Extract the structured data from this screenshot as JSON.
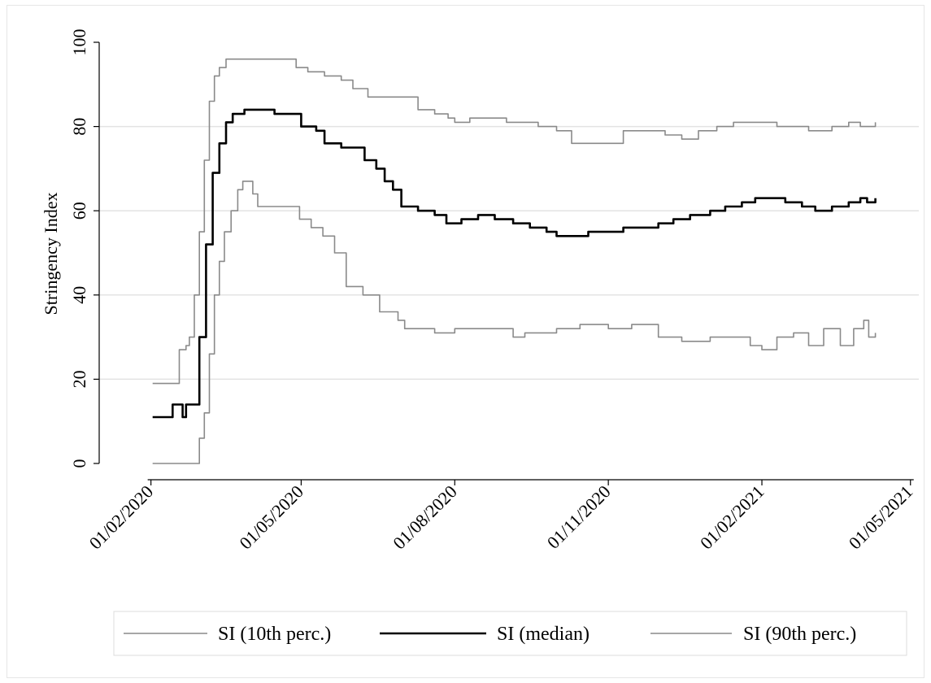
{
  "chart_data": {
    "type": "line",
    "title": "",
    "xlabel": "",
    "ylabel": "Stringency Index",
    "ylim": [
      0,
      100
    ],
    "yticks": [
      0,
      20,
      40,
      60,
      80,
      100
    ],
    "xlim": [
      "2020-01-01",
      "2021-05-06"
    ],
    "xticks": [
      {
        "date": "2020-02-01",
        "label": "01/02/2020"
      },
      {
        "date": "2020-05-01",
        "label": "01/05/2020"
      },
      {
        "date": "2020-08-01",
        "label": "01/08/2020"
      },
      {
        "date": "2020-11-01",
        "label": "01/11/2020"
      },
      {
        "date": "2021-02-01",
        "label": "01/02/2021"
      },
      {
        "date": "2021-05-01",
        "label": "01/05/2021"
      }
    ],
    "grid": true,
    "legend_position": "bottom",
    "series": [
      {
        "name": "SI (10th perc.)",
        "color": "#8a8a8a",
        "points": [
          [
            "2020-02-02",
            0
          ],
          [
            "2020-02-26",
            0
          ],
          [
            "2020-03-01",
            6
          ],
          [
            "2020-03-04",
            12
          ],
          [
            "2020-03-07",
            26
          ],
          [
            "2020-03-10",
            40
          ],
          [
            "2020-03-13",
            48
          ],
          [
            "2020-03-16",
            55
          ],
          [
            "2020-03-20",
            60
          ],
          [
            "2020-03-24",
            65
          ],
          [
            "2020-03-27",
            67
          ],
          [
            "2020-04-02",
            64
          ],
          [
            "2020-04-05",
            61
          ],
          [
            "2020-04-25",
            61
          ],
          [
            "2020-04-30",
            58
          ],
          [
            "2020-05-07",
            56
          ],
          [
            "2020-05-14",
            54
          ],
          [
            "2020-05-21",
            50
          ],
          [
            "2020-05-28",
            42
          ],
          [
            "2020-06-07",
            40
          ],
          [
            "2020-06-17",
            36
          ],
          [
            "2020-06-28",
            34
          ],
          [
            "2020-07-02",
            32
          ],
          [
            "2020-07-20",
            31
          ],
          [
            "2020-08-01",
            32
          ],
          [
            "2020-09-01",
            32
          ],
          [
            "2020-09-05",
            30
          ],
          [
            "2020-09-12",
            31
          ],
          [
            "2020-09-20",
            31
          ],
          [
            "2020-10-01",
            32
          ],
          [
            "2020-10-15",
            33
          ],
          [
            "2020-10-25",
            33
          ],
          [
            "2020-11-01",
            32
          ],
          [
            "2020-11-15",
            33
          ],
          [
            "2020-12-01",
            30
          ],
          [
            "2020-12-15",
            29
          ],
          [
            "2021-01-01",
            30
          ],
          [
            "2021-01-15",
            30
          ],
          [
            "2021-01-25",
            28
          ],
          [
            "2021-02-01",
            27
          ],
          [
            "2021-02-10",
            30
          ],
          [
            "2021-02-20",
            31
          ],
          [
            "2021-03-01",
            28
          ],
          [
            "2021-03-10",
            32
          ],
          [
            "2021-03-20",
            28
          ],
          [
            "2021-03-28",
            32
          ],
          [
            "2021-04-03",
            34
          ],
          [
            "2021-04-06",
            30
          ],
          [
            "2021-04-10",
            31
          ]
        ]
      },
      {
        "name": "SI (median)",
        "color": "#000000",
        "points": [
          [
            "2020-02-02",
            11
          ],
          [
            "2020-02-12",
            11
          ],
          [
            "2020-02-14",
            14
          ],
          [
            "2020-02-19",
            14
          ],
          [
            "2020-02-20",
            11
          ],
          [
            "2020-02-22",
            14
          ],
          [
            "2020-02-26",
            14
          ],
          [
            "2020-03-01",
            30
          ],
          [
            "2020-03-05",
            52
          ],
          [
            "2020-03-09",
            69
          ],
          [
            "2020-03-13",
            76
          ],
          [
            "2020-03-17",
            81
          ],
          [
            "2020-03-21",
            83
          ],
          [
            "2020-03-28",
            84
          ],
          [
            "2020-04-05",
            84
          ],
          [
            "2020-04-15",
            83
          ],
          [
            "2020-04-25",
            83
          ],
          [
            "2020-05-01",
            80
          ],
          [
            "2020-05-10",
            79
          ],
          [
            "2020-05-15",
            76
          ],
          [
            "2020-05-25",
            75
          ],
          [
            "2020-06-01",
            75
          ],
          [
            "2020-06-08",
            72
          ],
          [
            "2020-06-15",
            70
          ],
          [
            "2020-06-20",
            67
          ],
          [
            "2020-06-25",
            65
          ],
          [
            "2020-06-30",
            61
          ],
          [
            "2020-07-10",
            60
          ],
          [
            "2020-07-20",
            59
          ],
          [
            "2020-07-27",
            57
          ],
          [
            "2020-08-05",
            58
          ],
          [
            "2020-08-15",
            59
          ],
          [
            "2020-08-25",
            58
          ],
          [
            "2020-09-05",
            57
          ],
          [
            "2020-09-15",
            56
          ],
          [
            "2020-09-25",
            55
          ],
          [
            "2020-10-01",
            54
          ],
          [
            "2020-10-10",
            54
          ],
          [
            "2020-10-20",
            55
          ],
          [
            "2020-11-01",
            55
          ],
          [
            "2020-11-10",
            56
          ],
          [
            "2020-11-20",
            56
          ],
          [
            "2020-12-01",
            57
          ],
          [
            "2020-12-10",
            58
          ],
          [
            "2020-12-20",
            59
          ],
          [
            "2021-01-01",
            60
          ],
          [
            "2021-01-10",
            61
          ],
          [
            "2021-01-20",
            62
          ],
          [
            "2021-01-28",
            63
          ],
          [
            "2021-02-05",
            63
          ],
          [
            "2021-02-15",
            62
          ],
          [
            "2021-02-25",
            61
          ],
          [
            "2021-03-05",
            60
          ],
          [
            "2021-03-15",
            61
          ],
          [
            "2021-03-25",
            62
          ],
          [
            "2021-04-01",
            63
          ],
          [
            "2021-04-05",
            62
          ],
          [
            "2021-04-10",
            63
          ]
        ]
      },
      {
        "name": "SI (90th perc.)",
        "color": "#8a8a8a",
        "points": [
          [
            "2020-02-02",
            19
          ],
          [
            "2020-02-16",
            19
          ],
          [
            "2020-02-18",
            27
          ],
          [
            "2020-02-22",
            28
          ],
          [
            "2020-02-24",
            30
          ],
          [
            "2020-02-27",
            40
          ],
          [
            "2020-03-01",
            55
          ],
          [
            "2020-03-04",
            72
          ],
          [
            "2020-03-07",
            86
          ],
          [
            "2020-03-10",
            92
          ],
          [
            "2020-03-13",
            94
          ],
          [
            "2020-03-17",
            96
          ],
          [
            "2020-04-25",
            96
          ],
          [
            "2020-04-28",
            94
          ],
          [
            "2020-05-05",
            93
          ],
          [
            "2020-05-15",
            92
          ],
          [
            "2020-05-25",
            91
          ],
          [
            "2020-06-01",
            89
          ],
          [
            "2020-06-10",
            87
          ],
          [
            "2020-06-20",
            87
          ],
          [
            "2020-07-05",
            87
          ],
          [
            "2020-07-10",
            84
          ],
          [
            "2020-07-20",
            83
          ],
          [
            "2020-07-28",
            82
          ],
          [
            "2020-08-01",
            81
          ],
          [
            "2020-08-10",
            82
          ],
          [
            "2020-08-20",
            82
          ],
          [
            "2020-09-01",
            81
          ],
          [
            "2020-09-20",
            80
          ],
          [
            "2020-10-01",
            79
          ],
          [
            "2020-10-10",
            76
          ],
          [
            "2020-10-25",
            76
          ],
          [
            "2020-11-01",
            76
          ],
          [
            "2020-11-10",
            79
          ],
          [
            "2020-11-25",
            79
          ],
          [
            "2020-12-05",
            78
          ],
          [
            "2020-12-15",
            77
          ],
          [
            "2020-12-25",
            79
          ],
          [
            "2021-01-05",
            80
          ],
          [
            "2021-01-15",
            81
          ],
          [
            "2021-02-01",
            81
          ],
          [
            "2021-02-10",
            80
          ],
          [
            "2021-02-20",
            80
          ],
          [
            "2021-03-01",
            79
          ],
          [
            "2021-03-15",
            80
          ],
          [
            "2021-03-25",
            81
          ],
          [
            "2021-04-01",
            80
          ],
          [
            "2021-04-10",
            81
          ]
        ]
      }
    ]
  }
}
